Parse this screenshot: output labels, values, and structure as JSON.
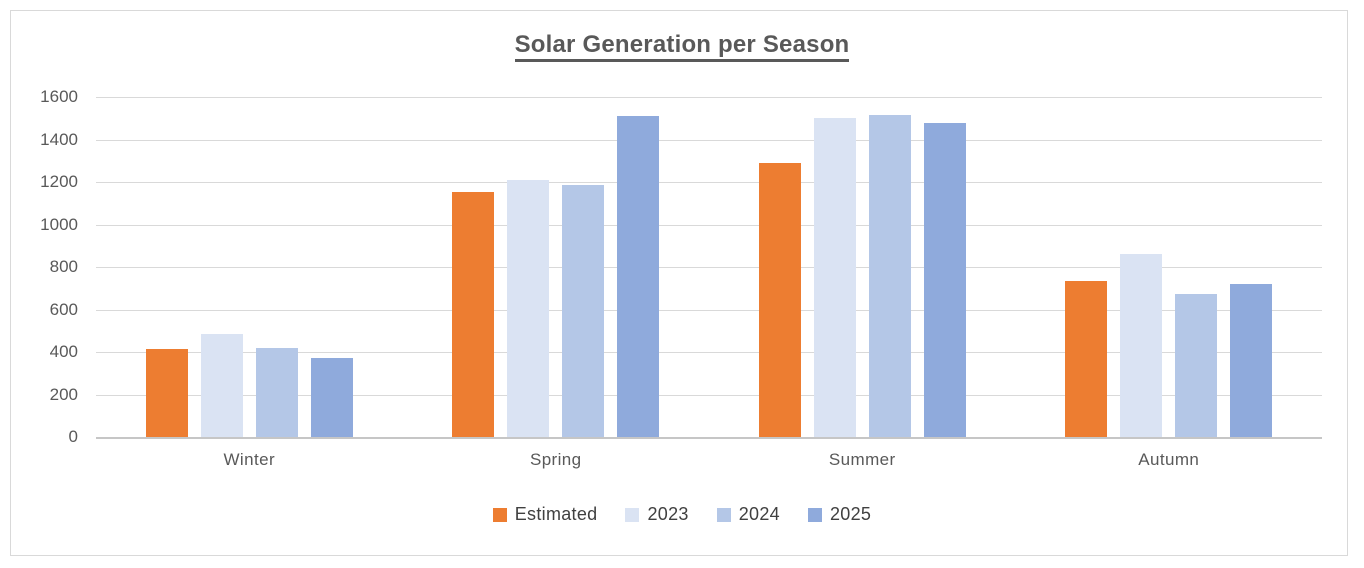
{
  "chart_data": {
    "type": "bar",
    "title": "Solar Generation per Season",
    "categories": [
      "Winter",
      "Spring",
      "Summer",
      "Autumn"
    ],
    "series": [
      {
        "name": "Estimated",
        "color": "#ED7D31",
        "values": [
          415,
          1155,
          1290,
          735
        ]
      },
      {
        "name": "2023",
        "color": "#DAE3F3",
        "values": [
          485,
          1210,
          1500,
          860
        ]
      },
      {
        "name": "2024",
        "color": "#B4C7E7",
        "values": [
          420,
          1185,
          1515,
          675
        ]
      },
      {
        "name": "2025",
        "color": "#8FAADC",
        "values": [
          370,
          1510,
          1480,
          720
        ]
      }
    ],
    "xlabel": "",
    "ylabel": "",
    "ylim": [
      0,
      1600
    ],
    "ytick_step": 200,
    "grid": true,
    "legend_position": "bottom",
    "colors": {
      "gridline": "#D9D9D9",
      "axis_line": "#C6C6C6",
      "axis_text": "#595959",
      "title_text": "#595959",
      "legend_text": "#404040",
      "chart_border": "#D9D9D9",
      "background": "#FFFFFF"
    }
  }
}
